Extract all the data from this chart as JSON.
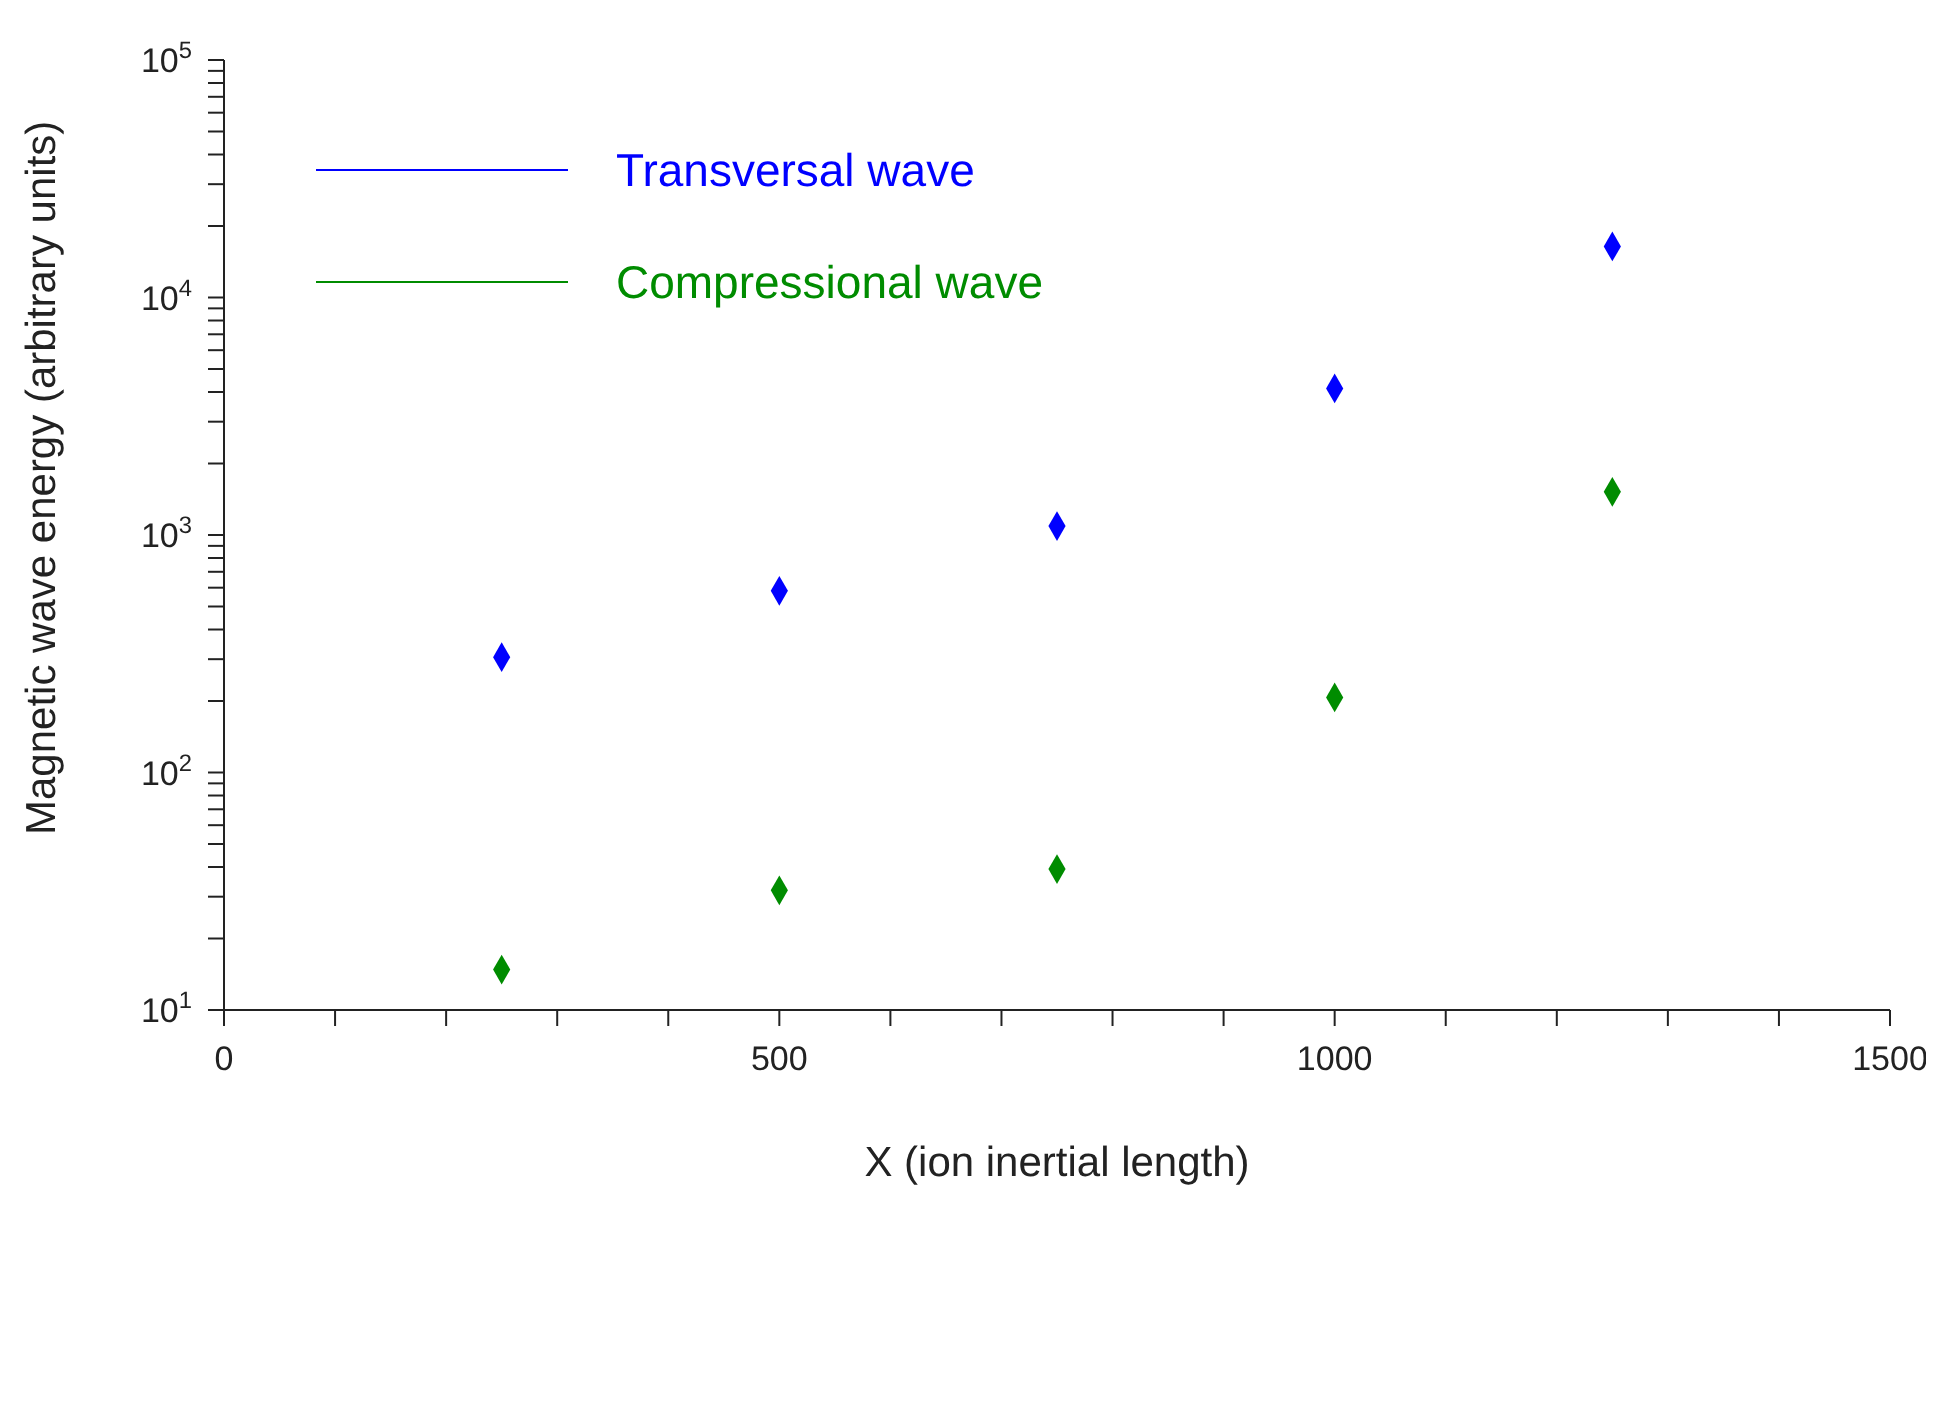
{
  "chart_data": {
    "type": "scatter",
    "xlabel": "X (ion inertial length)",
    "ylabel": "Magnetic wave energy (arbitrary units)",
    "x": [
      250,
      500,
      750,
      1000,
      1250
    ],
    "series": [
      {
        "name": "Transversal wave",
        "color": "#0000ff",
        "values": [
          306,
          582,
          1090,
          4140,
          16400
        ]
      },
      {
        "name": "Compressional wave",
        "color": "#008c00",
        "values": [
          14.8,
          31.9,
          39.2,
          207,
          1520
        ]
      }
    ],
    "marker": "diamond",
    "log": "y",
    "legend": "top left",
    "grid": false,
    "xlim": [
      0,
      1500
    ],
    "xticks": [
      0,
      {
        "value": 100,
        "label": null
      },
      {
        "value": 200,
        "label": null
      },
      {
        "value": 300,
        "label": null
      },
      {
        "value": 400,
        "label": null
      },
      500,
      {
        "value": 600,
        "label": null
      },
      {
        "value": 700,
        "label": null
      },
      {
        "value": 800,
        "label": null
      },
      {
        "value": 900,
        "label": null
      },
      1000,
      {
        "value": 1100,
        "label": null
      },
      {
        "value": 1200,
        "label": null
      },
      {
        "value": 1300,
        "label": null
      },
      {
        "value": 1400,
        "label": null
      },
      1500
    ],
    "ylim": [
      10,
      100000
    ],
    "yticks": [
      {
        "value": 10,
        "label": "10$^{1}$"
      },
      {
        "value": 20,
        "label": null
      },
      {
        "value": 30,
        "label": null
      },
      {
        "value": 40,
        "label": null
      },
      {
        "value": 50,
        "label": null
      },
      {
        "value": 60,
        "label": null
      },
      {
        "value": 70,
        "label": null
      },
      {
        "value": 80,
        "label": null
      },
      {
        "value": 90,
        "label": null
      },
      {
        "value": 100,
        "label": "10$^{2}$"
      },
      {
        "value": 200,
        "label": null
      },
      {
        "value": 300,
        "label": null
      },
      {
        "value": 400,
        "label": null
      },
      {
        "value": 500,
        "label": null
      },
      {
        "value": 600,
        "label": null
      },
      {
        "value": 700,
        "label": null
      },
      {
        "value": 800,
        "label": null
      },
      {
        "value": 900,
        "label": null
      },
      {
        "value": 1000,
        "label": "10$^{3}$"
      },
      {
        "value": 2000,
        "label": null
      },
      {
        "value": 3000,
        "label": null
      },
      {
        "value": 4000,
        "label": null
      },
      {
        "value": 5000,
        "label": null
      },
      {
        "value": 6000,
        "label": null
      },
      {
        "value": 7000,
        "label": null
      },
      {
        "value": 8000,
        "label": null
      },
      {
        "value": 9000,
        "label": null
      },
      {
        "value": 10000,
        "label": "10$^{4}$"
      },
      {
        "value": 20000,
        "label": null
      },
      {
        "value": 30000,
        "label": null
      },
      {
        "value": 40000,
        "label": null
      },
      {
        "value": 50000,
        "label": null
      },
      {
        "value": 60000,
        "label": null
      },
      {
        "value": 70000,
        "label": null
      },
      {
        "value": 80000,
        "label": null
      },
      {
        "value": 90000,
        "label": null
      },
      {
        "value": 100000,
        "label": "10$^{5}$"
      }
    ]
  }
}
